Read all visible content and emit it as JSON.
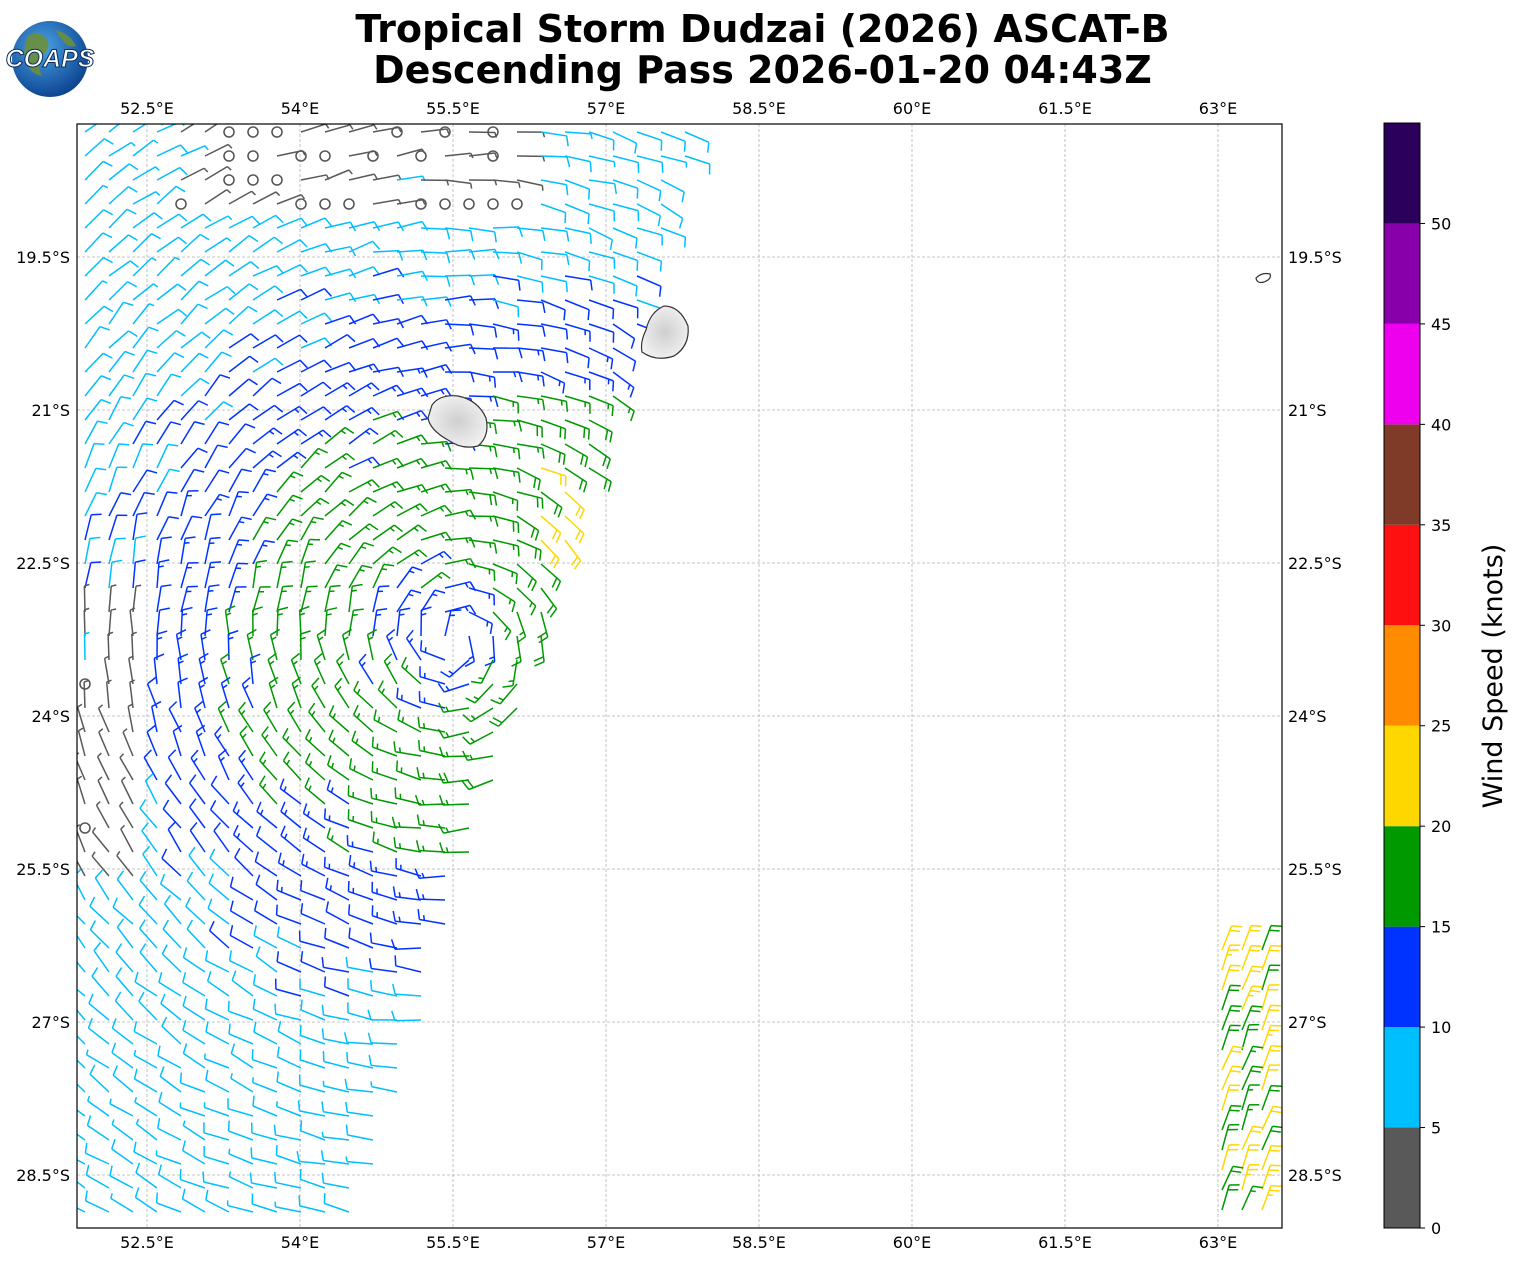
{
  "title_line1": "Tropical Storm Dudzai (2026) ASCAT-B",
  "title_line2": "Descending Pass 2026-01-20 04:43Z",
  "logo_text": "COAPS",
  "map": {
    "lon_labels": [
      "52.5°E",
      "54°E",
      "55.5°E",
      "57°E",
      "58.5°E",
      "60°E",
      "61.5°E",
      "63°E"
    ],
    "lon_values": [
      52.5,
      54,
      55.5,
      57,
      58.5,
      60,
      61.5,
      63
    ],
    "lat_labels": [
      "19.5°S",
      "21°S",
      "22.5°S",
      "24°S",
      "25.5°S",
      "27°S",
      "28.5°S"
    ],
    "lat_values": [
      -19.5,
      -21,
      -22.5,
      -24,
      -25.5,
      -27,
      -28.5
    ],
    "lon_range": [
      51.8,
      63.6
    ],
    "lat_range": [
      -29.2,
      -18.2
    ],
    "gridlines": "dashed",
    "islands": [
      "Réunion",
      "Mauritius",
      "Rodrigues"
    ]
  },
  "colorbar": {
    "label": "Wind Speed (knots)",
    "ticks": [
      "0",
      "5",
      "10",
      "15",
      "20",
      "25",
      "30",
      "35",
      "40",
      "45",
      "50"
    ],
    "bins": [
      {
        "from": 0,
        "to": 5,
        "color": "#595959"
      },
      {
        "from": 5,
        "to": 10,
        "color": "#00bfff"
      },
      {
        "from": 10,
        "to": 15,
        "color": "#0033ff"
      },
      {
        "from": 15,
        "to": 20,
        "color": "#009900"
      },
      {
        "from": 20,
        "to": 25,
        "color": "#ffd700"
      },
      {
        "from": 25,
        "to": 30,
        "color": "#ff8c00"
      },
      {
        "from": 30,
        "to": 35,
        "color": "#ff1010"
      },
      {
        "from": 35,
        "to": 40,
        "color": "#7f3a28"
      },
      {
        "from": 40,
        "to": 45,
        "color": "#ee00ee"
      },
      {
        "from": 45,
        "to": 50,
        "color": "#8800aa"
      },
      {
        "from": 50,
        "to": 55,
        "color": "#2a005a"
      }
    ]
  }
}
